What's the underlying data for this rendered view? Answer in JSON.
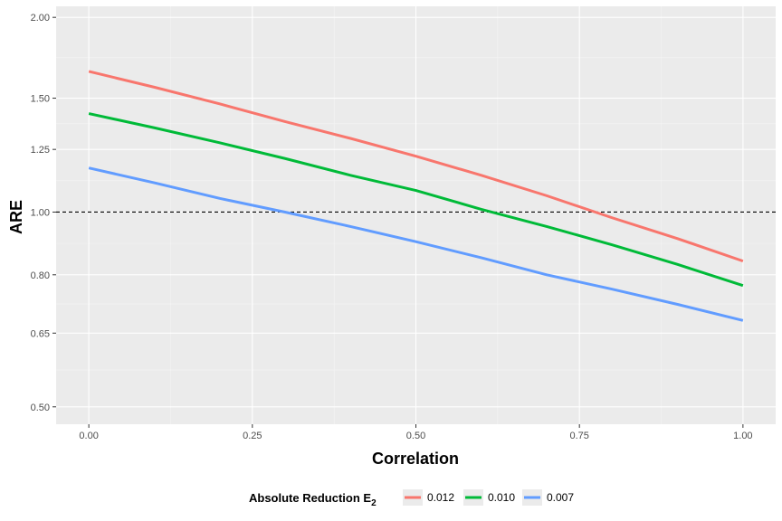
{
  "chart_data": {
    "type": "line",
    "xlabel": "Correlation",
    "ylabel": "ARE",
    "x_scale": "linear",
    "y_scale": "log",
    "xlim": [
      -0.05,
      1.05
    ],
    "ylim": [
      0.47,
      2.08
    ],
    "x_ticks": [
      0.0,
      0.25,
      0.5,
      0.75,
      1.0
    ],
    "x_tick_labels": [
      "0.00",
      "0.25",
      "0.50",
      "0.75",
      "1.00"
    ],
    "y_ticks": [
      0.5,
      0.65,
      0.8,
      1.0,
      1.25,
      1.5,
      2.0
    ],
    "y_tick_labels": [
      "0.50",
      "0.65",
      "0.80",
      "1.00",
      "1.25",
      "1.50",
      "2.00"
    ],
    "reference_line": {
      "y": 1.0,
      "style": "dashed",
      "color": "#000000"
    },
    "grid": true,
    "legend": {
      "title": "Absolute Reduction E",
      "title_subscript": "2",
      "position": "bottom"
    },
    "x": [
      0.0,
      0.1,
      0.2,
      0.3,
      0.4,
      0.5,
      0.6,
      0.7,
      0.8,
      0.9,
      1.0
    ],
    "series": [
      {
        "name": "0.012",
        "color": "#F8766D",
        "values": [
          1.65,
          1.56,
          1.47,
          1.38,
          1.3,
          1.22,
          1.14,
          1.06,
          0.98,
          0.91,
          0.84
        ]
      },
      {
        "name": "0.010",
        "color": "#00BA38",
        "values": [
          1.42,
          1.35,
          1.28,
          1.21,
          1.14,
          1.08,
          1.01,
          0.95,
          0.89,
          0.83,
          0.77
        ]
      },
      {
        "name": "0.007",
        "color": "#619CFF",
        "values": [
          1.17,
          1.11,
          1.05,
          1.0,
          0.95,
          0.9,
          0.85,
          0.8,
          0.76,
          0.72,
          0.68
        ]
      }
    ]
  },
  "colors": {
    "panel_background": "#EBEBEB",
    "grid_major": "#FFFFFF",
    "grid_minor": "#F5F5F5"
  }
}
